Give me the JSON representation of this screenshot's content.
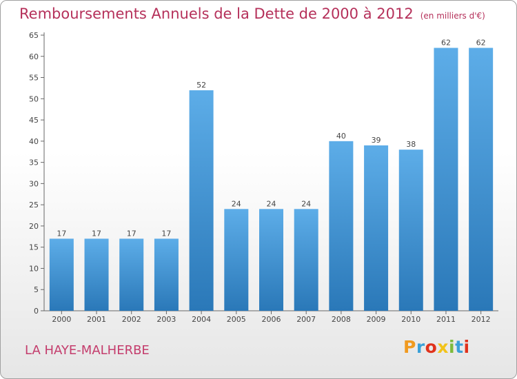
{
  "title": "Remboursements Annuels de la Dette de 2000 à 2012",
  "unit": "(en milliers d'€)",
  "place_name": "LA HAYE-MALHERBE",
  "logo": {
    "letters": [
      "P",
      "r",
      "o",
      "x",
      "i",
      "t",
      "i"
    ],
    "colors": [
      "#f09a1f",
      "#3aa0d8",
      "#e0321c",
      "#f2c31a",
      "#7dba3b",
      "#3aa0d8",
      "#e0321c"
    ]
  },
  "colors": {
    "bar_light": "#5dade8",
    "bar_dark": "#2a78b8",
    "title": "#b5305a",
    "place": "#c43c6c"
  },
  "chart_data": {
    "type": "bar",
    "categories": [
      "2000",
      "2001",
      "2002",
      "2003",
      "2004",
      "2005",
      "2006",
      "2007",
      "2008",
      "2009",
      "2010",
      "2011",
      "2012"
    ],
    "values": [
      17,
      17,
      17,
      17,
      52,
      24,
      24,
      24,
      40,
      39,
      38,
      62,
      62
    ],
    "ylim": [
      0,
      65
    ],
    "yticks": [
      0,
      5,
      10,
      15,
      20,
      25,
      30,
      35,
      40,
      45,
      50,
      55,
      60,
      65
    ],
    "grid": false,
    "data_labels": true
  }
}
